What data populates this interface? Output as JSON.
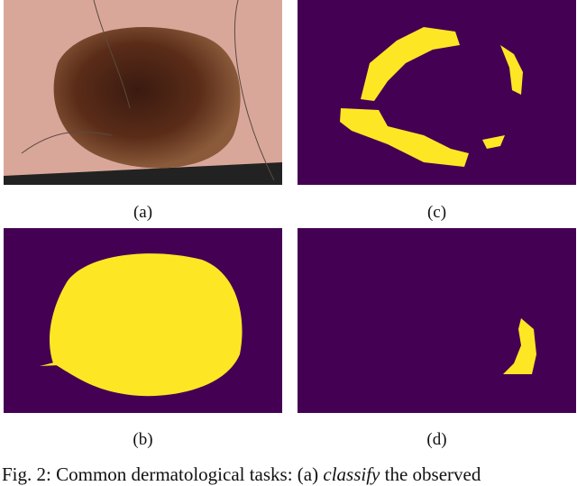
{
  "figure": {
    "panels": [
      {
        "label": "(a)",
        "kind": "dermoscopy-image"
      },
      {
        "label": "(b)",
        "kind": "segmentation-mask"
      },
      {
        "label": "(c)",
        "kind": "attribute-mask"
      },
      {
        "label": "(d)",
        "kind": "attribute-mask"
      }
    ],
    "colors": {
      "background": "#440154",
      "foreground": "#fde725"
    },
    "caption": {
      "prefix": "Fig. 2: Common dermatological tasks: (a) ",
      "emphasis": "classify",
      "suffix": " the observed"
    }
  }
}
